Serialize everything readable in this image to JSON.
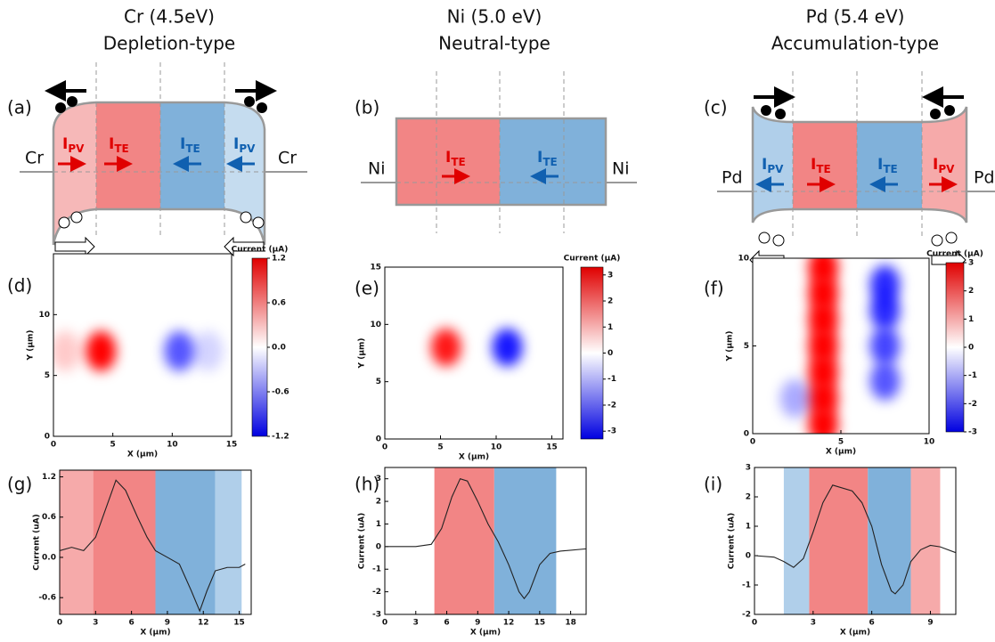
{
  "diagrams": [
    {
      "label": "(a)",
      "header": [
        "Cr (4.5eV)",
        "Depletion-type"
      ],
      "contacts": [
        "Cr",
        "Cr"
      ],
      "currents": [
        {
          "main": "I",
          "sub": "PV"
        },
        {
          "main": "I",
          "sub": "TE"
        },
        {
          "main": "I",
          "sub": "TE"
        },
        {
          "main": "I",
          "sub": "PV"
        }
      ]
    },
    {
      "label": "(b)",
      "header": [
        "Ni (5.0 eV)",
        "Neutral-type"
      ],
      "contacts": [
        "Ni",
        "Ni"
      ],
      "currents": [
        {
          "main": "I",
          "sub": "TE"
        },
        {
          "main": "I",
          "sub": "TE"
        }
      ]
    },
    {
      "label": "(c)",
      "header": [
        "Pd (5.4 eV)",
        "Accumulation-type"
      ],
      "contacts": [
        "Pd",
        "Pd"
      ],
      "currents": [
        {
          "main": "I",
          "sub": "PV"
        },
        {
          "main": "I",
          "sub": "TE"
        },
        {
          "main": "I",
          "sub": "TE"
        },
        {
          "main": "I",
          "sub": "PV"
        }
      ]
    }
  ],
  "chart_data": [
    {
      "type": "heatmap",
      "label": "(d)",
      "xlabel": "X (μm)",
      "ylabel": "Y (μm)",
      "colorbar_title": "Current (μA)",
      "xlim": [
        0,
        15
      ],
      "ylim": [
        0,
        15
      ],
      "xticks": [
        0,
        5,
        10,
        15
      ],
      "yticks": [
        0,
        5,
        10
      ],
      "clim": [
        -1.2,
        1.2
      ],
      "cticks": [
        1.2,
        0.6,
        {
          "value": 0,
          "label": "0.0"
        },
        -0.6,
        -1.2
      ],
      "spots": [
        {
          "x": 1,
          "y": 7,
          "value": 0.25
        },
        {
          "x": 4,
          "y": 7,
          "value": 1.2
        },
        {
          "x": 10.6,
          "y": 7,
          "value": -0.8
        },
        {
          "x": 13,
          "y": 7,
          "value": -0.2
        }
      ]
    },
    {
      "type": "heatmap",
      "label": "(e)",
      "xlabel": "X (μm)",
      "ylabel": "Y (μm)",
      "colorbar_title": "Current (μA)",
      "xlim": [
        0,
        16
      ],
      "ylim": [
        0,
        15
      ],
      "xticks": [
        0,
        5,
        10,
        15
      ],
      "yticks": [
        0,
        5,
        10,
        15
      ],
      "clim": [
        -3.3,
        3.3
      ],
      "cticks": [
        3,
        2,
        1,
        0,
        -1,
        -2,
        -3
      ],
      "spots": [
        {
          "x": 5.5,
          "y": 8,
          "value": 3
        },
        {
          "x": 11,
          "y": 8,
          "value": -3
        }
      ]
    },
    {
      "type": "heatmap",
      "label": "(f)",
      "xlabel": "X (μm)",
      "ylabel": "Y (μm)",
      "colorbar_title": "Current (μA)",
      "xlim": [
        0,
        10
      ],
      "ylim": [
        0,
        10
      ],
      "xticks": [
        0,
        5,
        10
      ],
      "yticks": [
        0,
        5,
        10
      ],
      "clim": [
        -3,
        3
      ],
      "cticks": [
        3,
        2,
        1,
        0,
        -1,
        -2,
        -3
      ],
      "spots": [
        {
          "x": 4,
          "y": 0.5,
          "value": 3
        },
        {
          "x": 4,
          "y": 2,
          "value": 3
        },
        {
          "x": 4,
          "y": 3.5,
          "value": 3
        },
        {
          "x": 4,
          "y": 5,
          "value": 3
        },
        {
          "x": 4,
          "y": 6.5,
          "value": 3
        },
        {
          "x": 4,
          "y": 8,
          "value": 3
        },
        {
          "x": 4,
          "y": 9.5,
          "value": 3
        },
        {
          "x": 7.5,
          "y": 3,
          "value": -2
        },
        {
          "x": 7.5,
          "y": 5,
          "value": -2.2
        },
        {
          "x": 7.5,
          "y": 7,
          "value": -2.5
        },
        {
          "x": 7.5,
          "y": 8.5,
          "value": -2.5
        },
        {
          "x": 2.4,
          "y": 2,
          "value": -1
        }
      ]
    },
    {
      "type": "line",
      "label": "(g)",
      "xlabel": "X (μm)",
      "ylabel": "Current (uA)",
      "xlim": [
        0,
        16
      ],
      "ylim": [
        -0.85,
        1.3
      ],
      "xticks": [
        0,
        3,
        6,
        9,
        12,
        15
      ],
      "yticks": [
        1.2,
        0.6,
        {
          "value": 0,
          "label": "0.0"
        },
        -0.6
      ],
      "bands": [
        {
          "from": 0,
          "to": 2.8,
          "color": "#f6aaaa"
        },
        {
          "from": 2.8,
          "to": 8,
          "color": "#f28585"
        },
        {
          "from": 8,
          "to": 13,
          "color": "#80b1da"
        },
        {
          "from": 13,
          "to": 15.2,
          "color": "#b0cfea"
        }
      ],
      "x": [
        0,
        1,
        2,
        3,
        4,
        4.7,
        5.5,
        6.5,
        7.3,
        8,
        9,
        10,
        11,
        11.7,
        12.3,
        13,
        14,
        15,
        15.5
      ],
      "values": [
        0.1,
        0.15,
        0.1,
        0.3,
        0.8,
        1.15,
        1.0,
        0.6,
        0.3,
        0.1,
        0.0,
        -0.1,
        -0.5,
        -0.8,
        -0.5,
        -0.2,
        -0.15,
        -0.15,
        -0.1
      ]
    },
    {
      "type": "line",
      "label": "(h)",
      "xlabel": "X (μm)",
      "ylabel": "Current (uA)",
      "xlim": [
        0,
        19.5
      ],
      "ylim": [
        -3,
        3.5
      ],
      "xticks": [
        0,
        3,
        6,
        9,
        12,
        15,
        18
      ],
      "yticks": [
        -3,
        -2,
        -1,
        0,
        1,
        2,
        3
      ],
      "bands": [
        {
          "from": 4.8,
          "to": 10.6,
          "color": "#f28585"
        },
        {
          "from": 10.6,
          "to": 16.6,
          "color": "#80b1da"
        }
      ],
      "x": [
        0,
        3,
        4.5,
        5.5,
        6.5,
        7.3,
        8,
        9,
        10,
        11,
        12,
        13,
        13.5,
        14,
        15,
        16,
        17,
        19.5
      ],
      "values": [
        0,
        0,
        0.1,
        0.8,
        2.2,
        3.0,
        2.9,
        2.0,
        1.0,
        0.2,
        -0.8,
        -2.0,
        -2.3,
        -2.0,
        -0.8,
        -0.3,
        -0.2,
        -0.1
      ]
    },
    {
      "type": "line",
      "label": "(i)",
      "xlabel": "X (μm)",
      "ylabel": "Current (uA)",
      "xlim": [
        0,
        10.3
      ],
      "ylim": [
        -2,
        3
      ],
      "xticks": [
        0,
        3,
        6,
        9
      ],
      "yticks": [
        -2,
        -1,
        0,
        1,
        2,
        3
      ],
      "bands": [
        {
          "from": 1.5,
          "to": 2.8,
          "color": "#b0cfea"
        },
        {
          "from": 2.8,
          "to": 5.8,
          "color": "#f28585"
        },
        {
          "from": 5.8,
          "to": 8,
          "color": "#80b1da"
        },
        {
          "from": 8,
          "to": 9.5,
          "color": "#f6aaaa"
        }
      ],
      "x": [
        0,
        1,
        1.5,
        2,
        2.5,
        3,
        3.5,
        4,
        5,
        5.5,
        6,
        6.5,
        7,
        7.2,
        7.6,
        8,
        8.5,
        9,
        9.5,
        10.3
      ],
      "values": [
        0,
        -0.05,
        -0.2,
        -0.4,
        -0.1,
        0.8,
        1.8,
        2.4,
        2.2,
        1.8,
        1.0,
        -0.3,
        -1.2,
        -1.3,
        -1.0,
        -0.2,
        0.2,
        0.35,
        0.3,
        0.1
      ]
    }
  ]
}
